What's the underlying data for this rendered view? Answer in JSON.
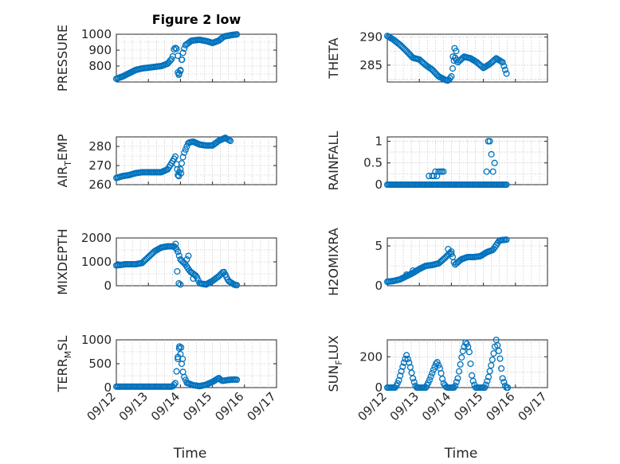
{
  "chart_data": [
    {
      "type": "scatter",
      "id": "pressure",
      "title": "Figure 2 low",
      "ylabel": "PRESSURE",
      "ylim": [
        700,
        1000
      ],
      "yticks": [
        800,
        900,
        1000
      ],
      "xlim": [
        0,
        5
      ],
      "xticks_labels": [],
      "xlabel": "",
      "anchors": [
        [
          0,
          720
        ],
        [
          0.2,
          735
        ],
        [
          0.4,
          755
        ],
        [
          0.6,
          775
        ],
        [
          0.8,
          785
        ],
        [
          1.0,
          790
        ],
        [
          1.2,
          795
        ],
        [
          1.4,
          800
        ],
        [
          1.6,
          815
        ],
        [
          1.75,
          850
        ],
        [
          1.8,
          905
        ],
        [
          1.87,
          920
        ],
        [
          1.92,
          865
        ],
        [
          1.95,
          760
        ],
        [
          1.98,
          740
        ],
        [
          2.02,
          810
        ],
        [
          2.06,
          870
        ],
        [
          2.15,
          930
        ],
        [
          2.35,
          960
        ],
        [
          2.6,
          965
        ],
        [
          2.85,
          955
        ],
        [
          3.0,
          945
        ],
        [
          3.2,
          960
        ],
        [
          3.35,
          985
        ],
        [
          3.6,
          995
        ],
        [
          3.8,
          1000
        ]
      ],
      "scatter_points": [
        [
          1.92,
          760
        ],
        [
          1.95,
          745
        ],
        [
          2.0,
          770
        ],
        [
          2.05,
          840
        ]
      ]
    },
    {
      "type": "scatter",
      "id": "theta",
      "title": "",
      "ylabel": "THETA",
      "ylim": [
        282,
        290.5
      ],
      "yticks": [
        285,
        290
      ],
      "xlim": [
        0,
        5
      ],
      "xticks_labels": [],
      "xlabel": "",
      "anchors": [
        [
          0,
          290.2
        ],
        [
          0.2,
          289.5
        ],
        [
          0.4,
          288.6
        ],
        [
          0.6,
          287.5
        ],
        [
          0.8,
          286.3
        ],
        [
          1.0,
          286.0
        ],
        [
          1.2,
          285.0
        ],
        [
          1.4,
          284.2
        ],
        [
          1.6,
          283.0
        ],
        [
          1.8,
          282.4
        ],
        [
          1.9,
          282.2
        ],
        [
          2.0,
          283.0
        ],
        [
          2.1,
          286.5
        ],
        [
          2.2,
          285.5
        ],
        [
          2.4,
          286.5
        ],
        [
          2.6,
          286.2
        ],
        [
          2.8,
          285.5
        ],
        [
          3.0,
          284.5
        ],
        [
          3.2,
          285.2
        ],
        [
          3.4,
          286.2
        ],
        [
          3.6,
          285.5
        ],
        [
          3.75,
          283.0
        ]
      ],
      "scatter_points": [
        [
          2.05,
          286.5
        ],
        [
          2.1,
          288.0
        ],
        [
          2.15,
          287.5
        ]
      ]
    },
    {
      "type": "scatter",
      "id": "air_temp",
      "title": "",
      "ylabel_main": "AIR",
      "ylabel_sub": "T",
      "ylabel_end": "EMP",
      "ylim": [
        260,
        285
      ],
      "yticks": [
        260,
        270,
        280
      ],
      "xlim": [
        0,
        5
      ],
      "xticks_labels": [],
      "xlabel": "",
      "anchors": [
        [
          0,
          263.5
        ],
        [
          0.2,
          264.5
        ],
        [
          0.4,
          265
        ],
        [
          0.6,
          266
        ],
        [
          0.8,
          266.5
        ],
        [
          1.0,
          266.5
        ],
        [
          1.2,
          266.5
        ],
        [
          1.4,
          266.5
        ],
        [
          1.6,
          268
        ],
        [
          1.75,
          272
        ],
        [
          1.85,
          275
        ],
        [
          1.92,
          265
        ],
        [
          2.0,
          268
        ],
        [
          2.1,
          276
        ],
        [
          2.25,
          282
        ],
        [
          2.4,
          282.5
        ],
        [
          2.6,
          281
        ],
        [
          2.8,
          280.5
        ],
        [
          3.0,
          280.5
        ],
        [
          3.2,
          283
        ],
        [
          3.4,
          284.5
        ],
        [
          3.6,
          282.5
        ]
      ],
      "scatter_points": [
        [
          1.9,
          268
        ],
        [
          1.95,
          264.5
        ],
        [
          2.02,
          266
        ]
      ]
    },
    {
      "type": "scatter",
      "id": "rainfall",
      "title": "",
      "ylabel": "RAINFALL",
      "ylim": [
        0,
        1.1
      ],
      "yticks": [
        0,
        0.5,
        1
      ],
      "xlim": [
        0,
        5
      ],
      "xticks_labels": [],
      "xlabel": "",
      "anchors": [
        [
          0,
          0
        ],
        [
          3.75,
          0
        ]
      ],
      "scatter_points": [
        [
          1.3,
          0.2
        ],
        [
          1.4,
          0.2
        ],
        [
          1.45,
          0.2
        ],
        [
          1.5,
          0.3
        ],
        [
          1.55,
          0.2
        ],
        [
          1.6,
          0.3
        ],
        [
          1.65,
          0.3
        ],
        [
          1.7,
          0.3
        ],
        [
          1.75,
          0.3
        ],
        [
          1.8,
          0
        ],
        [
          3.1,
          0.3
        ],
        [
          3.15,
          1.0
        ],
        [
          3.2,
          1.0
        ],
        [
          3.25,
          0.7
        ],
        [
          3.3,
          0.3
        ],
        [
          3.35,
          0.5
        ]
      ]
    },
    {
      "type": "scatter",
      "id": "mixdepth",
      "title": "",
      "ylabel": "MIXDEPTH",
      "ylim": [
        0,
        2000
      ],
      "yticks": [
        0,
        1000,
        2000
      ],
      "xlim": [
        0,
        5
      ],
      "xticks_labels": [],
      "xlabel": "",
      "anchors": [
        [
          0,
          850
        ],
        [
          0.3,
          900
        ],
        [
          0.6,
          900
        ],
        [
          0.8,
          950
        ],
        [
          1.0,
          1200
        ],
        [
          1.2,
          1450
        ],
        [
          1.4,
          1600
        ],
        [
          1.6,
          1650
        ],
        [
          1.8,
          1650
        ],
        [
          1.9,
          1500
        ],
        [
          2.0,
          1100
        ],
        [
          2.15,
          900
        ],
        [
          2.3,
          600
        ],
        [
          2.5,
          400
        ],
        [
          2.6,
          100
        ],
        [
          2.8,
          50
        ],
        [
          3.0,
          200
        ],
        [
          3.2,
          400
        ],
        [
          3.35,
          600
        ],
        [
          3.5,
          200
        ],
        [
          3.7,
          30
        ],
        [
          3.8,
          20
        ]
      ],
      "scatter_points": [
        [
          1.85,
          1750
        ],
        [
          1.9,
          600
        ],
        [
          1.95,
          100
        ],
        [
          2.0,
          50
        ],
        [
          2.2,
          1100
        ],
        [
          2.25,
          1250
        ],
        [
          2.4,
          300
        ]
      ]
    },
    {
      "type": "scatter",
      "id": "h2omixra",
      "title": "",
      "ylabel": "H2OMIXRA",
      "ylim": [
        0,
        6
      ],
      "yticks": [
        0,
        5
      ],
      "xlim": [
        0,
        5
      ],
      "xticks_labels": [],
      "xlabel": "",
      "anchors": [
        [
          0,
          0.5
        ],
        [
          0.2,
          0.6
        ],
        [
          0.4,
          0.8
        ],
        [
          0.6,
          1.2
        ],
        [
          0.8,
          1.6
        ],
        [
          1.0,
          2.1
        ],
        [
          1.2,
          2.5
        ],
        [
          1.4,
          2.6
        ],
        [
          1.6,
          2.8
        ],
        [
          1.8,
          3.5
        ],
        [
          2.0,
          4.3
        ],
        [
          2.1,
          2.6
        ],
        [
          2.3,
          3.3
        ],
        [
          2.5,
          3.6
        ],
        [
          2.7,
          3.6
        ],
        [
          2.9,
          3.7
        ],
        [
          3.1,
          4.2
        ],
        [
          3.3,
          4.5
        ],
        [
          3.5,
          5.7
        ],
        [
          3.75,
          5.8
        ]
      ],
      "scatter_points": [
        [
          0.6,
          1.4
        ],
        [
          0.8,
          1.9
        ],
        [
          1.9,
          4.6
        ],
        [
          2.0,
          4.0
        ]
      ]
    },
    {
      "type": "scatter",
      "id": "terr_msl",
      "title": "",
      "ylabel_main": "TERR",
      "ylabel_sub": "M",
      "ylabel_end": "SL",
      "ylim": [
        0,
        1000
      ],
      "yticks": [
        0,
        500,
        1000
      ],
      "xlim": [
        0,
        5
      ],
      "xticks_labels": [
        "09/12",
        "09/13",
        "09/14",
        "09/15",
        "09/16",
        "09/17"
      ],
      "xlabel": "Time",
      "anchors": [
        [
          0,
          20
        ],
        [
          1.75,
          20
        ],
        [
          1.85,
          100
        ],
        [
          1.9,
          500
        ],
        [
          1.95,
          850
        ],
        [
          2.0,
          700
        ],
        [
          2.05,
          450
        ],
        [
          2.1,
          250
        ],
        [
          2.2,
          100
        ],
        [
          2.4,
          50
        ],
        [
          2.6,
          30
        ],
        [
          2.8,
          60
        ],
        [
          3.0,
          120
        ],
        [
          3.2,
          200
        ],
        [
          3.3,
          140
        ],
        [
          3.5,
          160
        ],
        [
          3.7,
          170
        ],
        [
          3.8,
          160
        ]
      ],
      "scatter_points": [
        [
          1.92,
          600
        ],
        [
          1.97,
          860
        ],
        [
          2.02,
          840
        ],
        [
          2.07,
          600
        ]
      ]
    },
    {
      "type": "scatter",
      "id": "sun_flux",
      "title": "",
      "ylabel_main": "SUN",
      "ylabel_sub": "F",
      "ylabel_end": "LUX",
      "ylim": [
        0,
        310
      ],
      "yticks": [
        0,
        200
      ],
      "xlim": [
        0,
        5
      ],
      "xticks_labels": [
        "09/12",
        "09/13",
        "09/14",
        "09/15",
        "09/16",
        "09/17"
      ],
      "xlabel": "Time",
      "anchors": [
        [
          0,
          0
        ],
        [
          0.25,
          0
        ],
        [
          0.35,
          40
        ],
        [
          0.5,
          150
        ],
        [
          0.6,
          210
        ],
        [
          0.7,
          150
        ],
        [
          0.8,
          60
        ],
        [
          0.9,
          0
        ],
        [
          1.2,
          0
        ],
        [
          1.3,
          40
        ],
        [
          1.45,
          120
        ],
        [
          1.55,
          170
        ],
        [
          1.65,
          120
        ],
        [
          1.75,
          30
        ],
        [
          1.85,
          0
        ],
        [
          2.1,
          0
        ],
        [
          2.2,
          60
        ],
        [
          2.35,
          230
        ],
        [
          2.45,
          300
        ],
        [
          2.55,
          250
        ],
        [
          2.65,
          60
        ],
        [
          2.75,
          0
        ],
        [
          3.05,
          0
        ],
        [
          3.15,
          60
        ],
        [
          3.3,
          200
        ],
        [
          3.4,
          310
        ],
        [
          3.5,
          220
        ],
        [
          3.6,
          60
        ],
        [
          3.7,
          0
        ],
        [
          3.8,
          0
        ]
      ],
      "scatter_points": []
    }
  ]
}
